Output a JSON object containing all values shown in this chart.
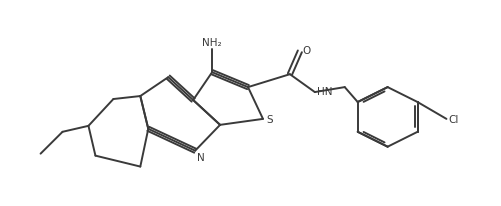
{
  "background_color": "#ffffff",
  "line_color": "#3a3a3a",
  "line_width": 1.4,
  "figsize": [
    5.02,
    2.07
  ],
  "dpi": 100,
  "atoms": {
    "NH2": {
      "text": "NH₂"
    },
    "O": {
      "text": "O"
    },
    "S": {
      "text": "S"
    },
    "N": {
      "text": "N"
    },
    "HN": {
      "text": "HN"
    },
    "Cl": {
      "text": "Cl"
    }
  },
  "fontsize": 7.5
}
